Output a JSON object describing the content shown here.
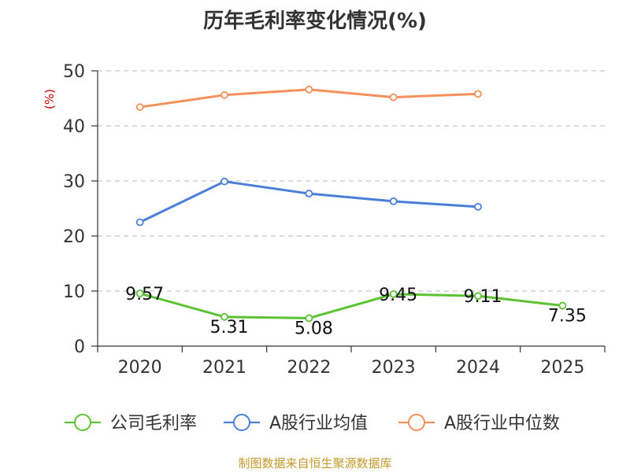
{
  "chart_data": {
    "type": "line",
    "title": "历年毛利率变化情况(%)",
    "ylabel": "(%)",
    "xlabel": "",
    "categories": [
      "2020",
      "2021",
      "2022",
      "2023",
      "2024",
      "2025"
    ],
    "ylim": [
      0,
      50
    ],
    "yticks": [
      0,
      10,
      20,
      30,
      40,
      50
    ],
    "grid": true,
    "legend_position": "bottom",
    "series": [
      {
        "name": "公司毛利率",
        "color": "#5cc233",
        "values": [
          9.57,
          5.31,
          5.08,
          9.45,
          9.11,
          7.35
        ],
        "labels": [
          "9.57",
          "5.31",
          "5.08",
          "9.45",
          "9.11",
          "7.35"
        ]
      },
      {
        "name": "A股行业均值",
        "color": "#4a7fd9",
        "values": [
          22.5,
          29.9,
          27.7,
          26.3,
          25.3,
          null
        ]
      },
      {
        "name": "A股行业中位数",
        "color": "#f5905a",
        "values": [
          43.4,
          45.6,
          46.6,
          45.2,
          45.8,
          null
        ]
      }
    ]
  },
  "source": "制图数据来自恒生聚源数据库",
  "colors": {
    "axis": "#333333",
    "grid": "#c8c8c8",
    "ylabel": "#cc0000",
    "source": "#c49a2a"
  }
}
